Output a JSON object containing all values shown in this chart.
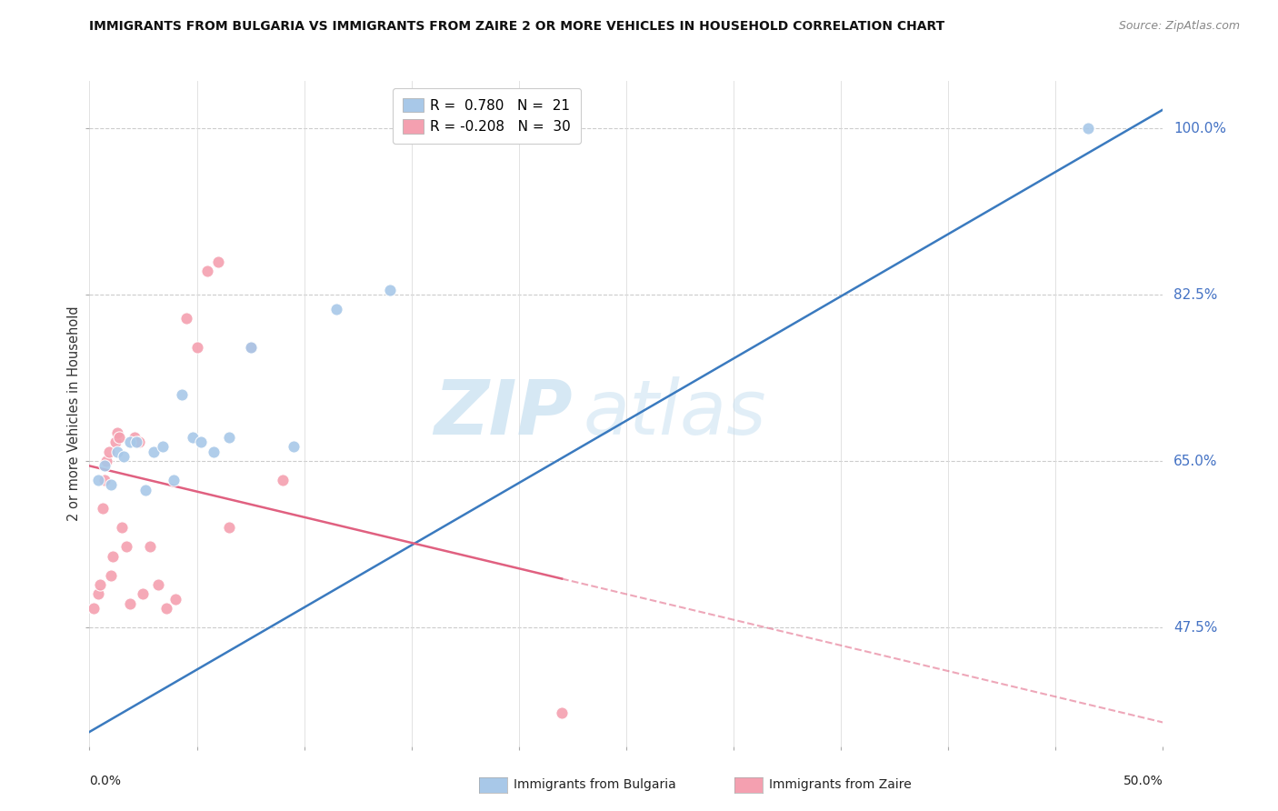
{
  "title": "IMMIGRANTS FROM BULGARIA VS IMMIGRANTS FROM ZAIRE 2 OR MORE VEHICLES IN HOUSEHOLD CORRELATION CHART",
  "source": "Source: ZipAtlas.com",
  "ylabel": "2 or more Vehicles in Household",
  "right_yticks": [
    47.5,
    65.0,
    82.5,
    100.0
  ],
  "right_ytick_labels": [
    "47.5%",
    "65.0%",
    "82.5%",
    "100.0%"
  ],
  "watermark_zip": "ZIP",
  "watermark_atlas": "atlas",
  "legend_bulgaria": "R =  0.780   N =  21",
  "legend_zaire": "R = -0.208   N =  30",
  "bulgaria_color": "#a8c8e8",
  "zaire_color": "#f4a0b0",
  "bulgaria_line_color": "#3a7abf",
  "zaire_line_color": "#e06080",
  "bulgaria_scatter": {
    "x": [
      0.4,
      0.7,
      1.0,
      1.3,
      1.6,
      1.9,
      2.2,
      2.6,
      3.0,
      3.4,
      3.9,
      4.3,
      4.8,
      5.2,
      5.8,
      6.5,
      7.5,
      9.5,
      11.5,
      14.0,
      46.5
    ],
    "y": [
      63.0,
      64.5,
      62.5,
      66.0,
      65.5,
      67.0,
      67.0,
      62.0,
      66.0,
      66.5,
      63.0,
      72.0,
      67.5,
      67.0,
      66.0,
      67.5,
      77.0,
      66.5,
      81.0,
      83.0,
      100.0
    ]
  },
  "zaire_scatter": {
    "x": [
      0.2,
      0.4,
      0.5,
      0.6,
      0.7,
      0.8,
      0.9,
      1.0,
      1.1,
      1.2,
      1.3,
      1.4,
      1.5,
      1.7,
      1.9,
      2.1,
      2.3,
      2.5,
      2.8,
      3.2,
      3.6,
      4.0,
      4.5,
      5.0,
      5.5,
      6.0,
      6.5,
      7.5,
      22.0,
      9.0
    ],
    "y": [
      49.5,
      51.0,
      52.0,
      60.0,
      63.0,
      65.0,
      66.0,
      53.0,
      55.0,
      67.0,
      68.0,
      67.5,
      58.0,
      56.0,
      50.0,
      67.5,
      67.0,
      51.0,
      56.0,
      52.0,
      49.5,
      50.5,
      80.0,
      77.0,
      85.0,
      86.0,
      58.0,
      77.0,
      38.5,
      63.0
    ]
  },
  "xlim": [
    0,
    50
  ],
  "ylim": [
    35,
    105
  ],
  "xgrid_values": [
    0,
    5,
    10,
    15,
    20,
    25,
    30,
    35,
    40,
    45,
    50
  ],
  "ygrid_values": [
    47.5,
    65.0,
    82.5,
    100.0
  ],
  "zaire_solid_end": 22.0,
  "bulgaria_line_x": [
    0,
    50
  ],
  "bulgaria_line_y": [
    36.5,
    102.0
  ],
  "zaire_line_x0": 0,
  "zaire_line_y0": 64.5,
  "zaire_line_x1": 50,
  "zaire_line_y1": 37.5
}
